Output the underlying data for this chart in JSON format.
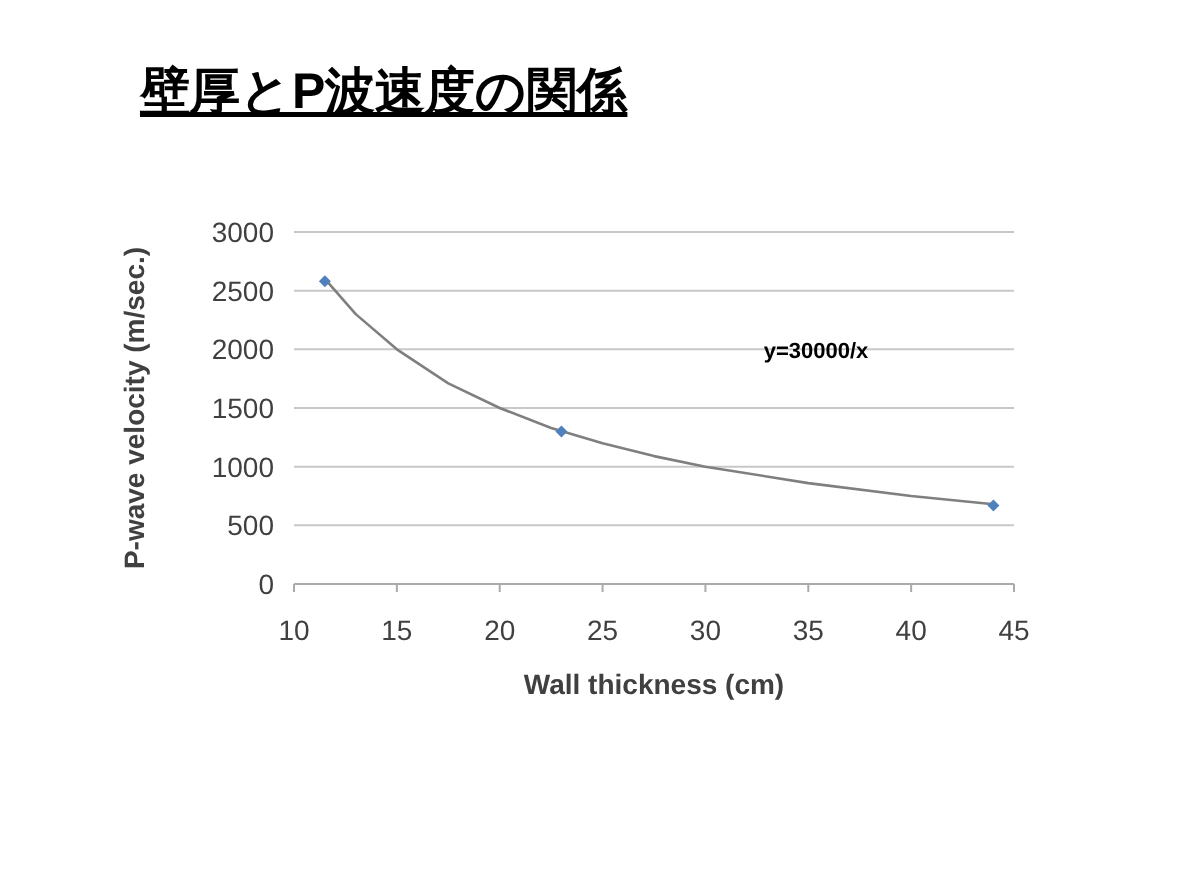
{
  "chart_data": {
    "type": "scatter",
    "title": "壁厚とP波速度の関係",
    "xlabel": "Wall thickness (cm)",
    "ylabel": "P-wave velocity (m/sec.)",
    "xlim": [
      10,
      45
    ],
    "xticks": [
      10,
      15,
      20,
      25,
      30,
      35,
      40,
      45
    ],
    "ylim": [
      0,
      3000
    ],
    "yticks": [
      0,
      500,
      1000,
      1500,
      2000,
      2500,
      3000
    ],
    "grid": "y",
    "annotations": [
      "y=30000/x"
    ],
    "series": [
      {
        "marker": "diamond",
        "color": "#4f81bd",
        "x": [
          11.5,
          23,
          44
        ],
        "values": [
          2580,
          1300,
          670
        ]
      },
      {
        "type": "line",
        "marker": "none",
        "color": "#7f7f7f",
        "x": [
          11.5,
          13,
          15,
          17.5,
          20,
          22.5,
          25,
          27.5,
          30,
          35,
          40,
          44
        ],
        "values": [
          2600,
          2300,
          2000,
          1710,
          1500,
          1330,
          1200,
          1090,
          1000,
          860,
          750,
          680
        ]
      }
    ]
  }
}
